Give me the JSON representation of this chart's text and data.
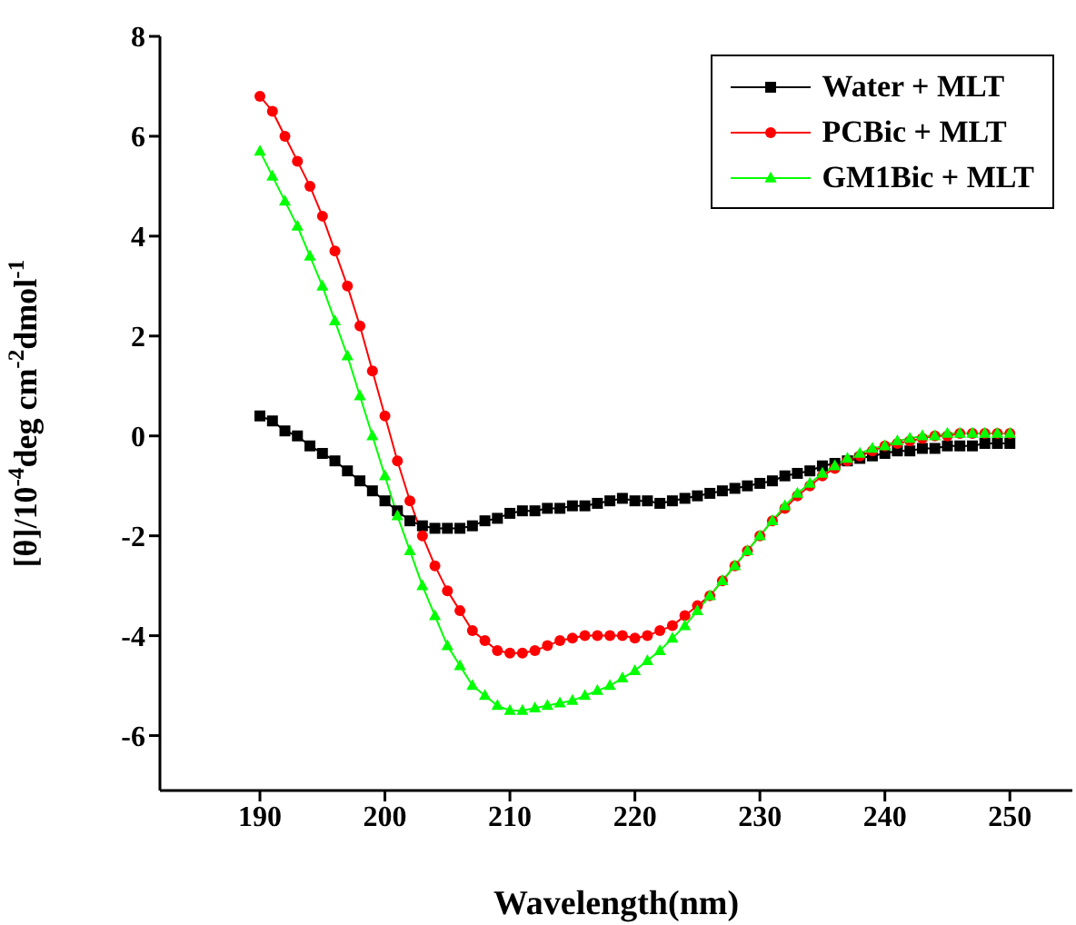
{
  "chart_data": {
    "type": "line",
    "xlabel": "Wavelength(nm)",
    "ylabel": "[θ]/10$^{-4}$deg cm$^{-2}$dmol$^{-1}$",
    "xlim": [
      182,
      255
    ],
    "ylim": [
      -7.1,
      8
    ],
    "xticks": [
      190,
      200,
      210,
      220,
      230,
      240,
      250
    ],
    "yticks": [
      -6,
      -4,
      -2,
      0,
      2,
      4,
      6,
      8
    ],
    "legend": "top right",
    "grid": false,
    "x": [
      190,
      191,
      192,
      193,
      194,
      195,
      196,
      197,
      198,
      199,
      200,
      201,
      202,
      203,
      204,
      205,
      206,
      207,
      208,
      209,
      210,
      211,
      212,
      213,
      214,
      215,
      216,
      217,
      218,
      219,
      220,
      221,
      222,
      223,
      224,
      225,
      226,
      227,
      228,
      229,
      230,
      231,
      232,
      233,
      234,
      235,
      236,
      237,
      238,
      239,
      240,
      241,
      242,
      243,
      244,
      245,
      246,
      247,
      248,
      249,
      250
    ],
    "series": [
      {
        "name": "Water + MLT",
        "color": "#000000",
        "marker": "square",
        "values": [
          0.4,
          0.3,
          0.1,
          0,
          -0.2,
          -0.35,
          -0.5,
          -0.7,
          -0.9,
          -1.1,
          -1.3,
          -1.5,
          -1.7,
          -1.8,
          -1.85,
          -1.85,
          -1.85,
          -1.8,
          -1.7,
          -1.65,
          -1.55,
          -1.5,
          -1.5,
          -1.45,
          -1.45,
          -1.4,
          -1.4,
          -1.35,
          -1.3,
          -1.25,
          -1.3,
          -1.3,
          -1.35,
          -1.3,
          -1.25,
          -1.2,
          -1.15,
          -1.1,
          -1.05,
          -1,
          -0.95,
          -0.9,
          -0.8,
          -0.75,
          -0.7,
          -0.6,
          -0.55,
          -0.5,
          -0.45,
          -0.4,
          -0.35,
          -0.3,
          -0.3,
          -0.25,
          -0.25,
          -0.2,
          -0.2,
          -0.2,
          -0.15,
          -0.15,
          -0.15
        ]
      },
      {
        "name": "PCBic + MLT",
        "color": "#ff0000",
        "marker": "circle",
        "values": [
          6.8,
          6.5,
          6,
          5.5,
          5,
          4.4,
          3.7,
          3,
          2.2,
          1.3,
          0.4,
          -0.5,
          -1.3,
          -2,
          -2.6,
          -3.1,
          -3.5,
          -3.9,
          -4.1,
          -4.3,
          -4.35,
          -4.35,
          -4.3,
          -4.2,
          -4.1,
          -4.05,
          -4,
          -4,
          -4,
          -4,
          -4.05,
          -4,
          -3.9,
          -3.8,
          -3.6,
          -3.4,
          -3.2,
          -2.9,
          -2.6,
          -2.3,
          -2,
          -1.7,
          -1.45,
          -1.2,
          -1,
          -0.8,
          -0.65,
          -0.5,
          -0.4,
          -0.3,
          -0.2,
          -0.15,
          -0.1,
          -0.05,
          0,
          0,
          0.05,
          0.05,
          0.05,
          0.05,
          0.05
        ]
      },
      {
        "name": "GM1Bic + MLT",
        "color": "#00ff00",
        "marker": "triangle",
        "values": [
          5.7,
          5.2,
          4.7,
          4.2,
          3.6,
          3,
          2.3,
          1.6,
          0.8,
          0,
          -0.8,
          -1.6,
          -2.3,
          -3,
          -3.6,
          -4.2,
          -4.6,
          -5,
          -5.2,
          -5.4,
          -5.5,
          -5.5,
          -5.45,
          -5.4,
          -5.35,
          -5.3,
          -5.2,
          -5.1,
          -5,
          -4.85,
          -4.7,
          -4.5,
          -4.3,
          -4.05,
          -3.8,
          -3.5,
          -3.2,
          -2.9,
          -2.6,
          -2.3,
          -2,
          -1.7,
          -1.4,
          -1.15,
          -0.95,
          -0.75,
          -0.6,
          -0.45,
          -0.35,
          -0.25,
          -0.2,
          -0.1,
          -0.05,
          0,
          0,
          0.05,
          0.05,
          0.05,
          0.05,
          0.05,
          0.05
        ]
      }
    ]
  }
}
